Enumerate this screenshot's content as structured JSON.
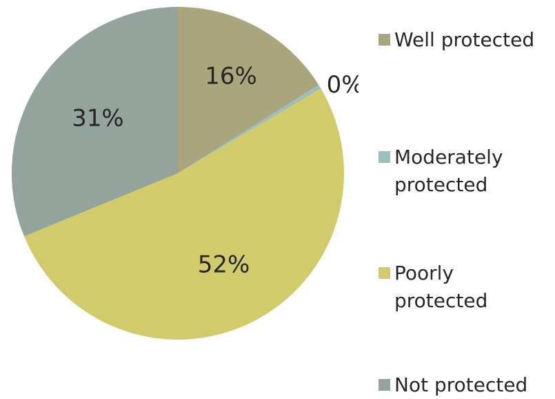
{
  "chart_data": {
    "type": "pie",
    "categories": [
      "Well protected",
      "Moderately protected",
      "Poorly protected",
      "Not protected"
    ],
    "values": [
      16,
      0.4,
      52,
      31
    ],
    "data_labels": [
      "16%",
      "0%",
      "52%",
      "31%"
    ],
    "colors": [
      "#a9a57c",
      "#9cbebd",
      "#d2cb6c",
      "#95a39d"
    ],
    "legend_placement": "right",
    "start_angle_deg": 0,
    "direction": "clockwise"
  }
}
